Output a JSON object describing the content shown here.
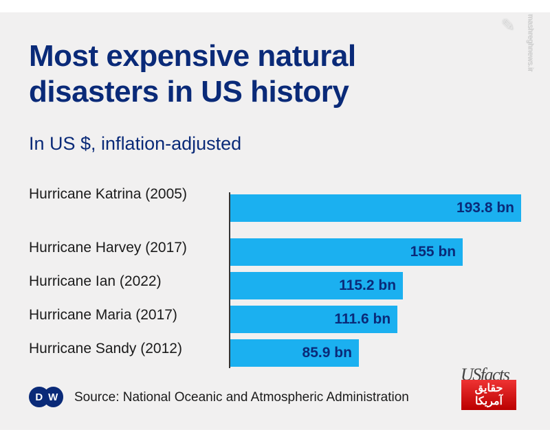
{
  "chart_data": {
    "type": "bar",
    "orientation": "horizontal",
    "title": "Most expensive natural disasters in US history",
    "subtitle": "In US $, inflation-adjusted",
    "categories": [
      "Hurricane Katrina (2005)",
      "Hurricane Harvey (2017)",
      "Hurricane Ian (2022)",
      "Hurricane Maria (2017)",
      "Hurricane Sandy (2012)"
    ],
    "values": [
      193.8,
      155,
      115.2,
      111.6,
      85.9
    ],
    "value_labels": [
      "193.8 bn",
      "155 bn",
      "115.2 bn",
      "111.6 bn",
      "85.9 bn"
    ],
    "unit": "bn US $",
    "xlim": [
      0,
      193.8
    ],
    "grid": false,
    "bar_color": "#1bb0f0"
  },
  "footer": {
    "source": "Source: National Oceanic and Atmospheric Administration",
    "dw_letters": [
      "D",
      "W"
    ]
  },
  "logos": {
    "usfacts": "USfacts",
    "usfacts_arabic": "حقایق آمریکا",
    "watermark": "mashreghnews.ir",
    "watermark_logo": "مشرق"
  }
}
